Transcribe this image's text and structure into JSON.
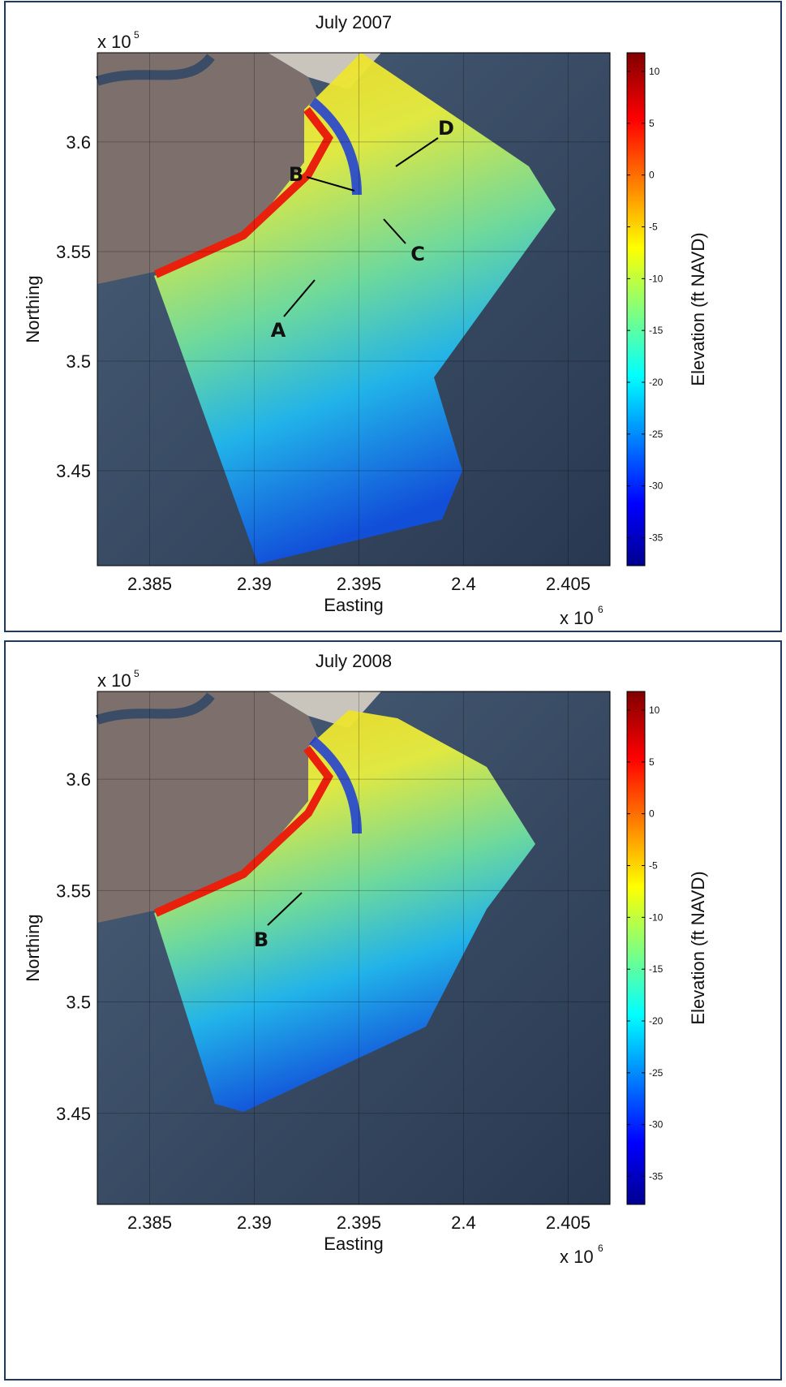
{
  "panels": [
    {
      "title": "July 2007",
      "y_exponent": {
        "base": "x 10",
        "power": "5"
      },
      "x_exponent": {
        "base": "x 10",
        "power": "6"
      },
      "xlabel": "Easting",
      "ylabel": "Northing",
      "xlim": [
        2.3825,
        2.407
      ],
      "ylim": [
        3.4067,
        3.6407
      ],
      "xticks": [
        2.385,
        2.39,
        2.395,
        2.4,
        2.405
      ],
      "yticks": [
        3.45,
        3.5,
        3.55,
        3.6
      ],
      "grid": true,
      "colorbar": {
        "label": "Elevation (ft NAVD)",
        "lim": [
          -37.7,
          11.8
        ],
        "ticks": [
          10,
          5,
          0,
          -5,
          -10,
          -15,
          -20,
          -25,
          -30,
          -35
        ]
      },
      "annotations": [
        "A",
        "B",
        "C",
        "D"
      ]
    },
    {
      "title": "July 2008",
      "y_exponent": {
        "base": "x 10",
        "power": "5"
      },
      "x_exponent": {
        "base": "x 10",
        "power": "6"
      },
      "xlabel": "Easting",
      "ylabel": "Northing",
      "xlim": [
        2.3825,
        2.407
      ],
      "ylim": [
        3.4091,
        3.6394
      ],
      "xticks": [
        2.385,
        2.39,
        2.395,
        2.4,
        2.405
      ],
      "yticks": [
        3.45,
        3.5,
        3.55,
        3.6
      ],
      "grid": true,
      "colorbar": {
        "label": "Elevation (ft NAVD)",
        "lim": [
          -37.7,
          11.8
        ],
        "ticks": [
          10,
          5,
          0,
          -5,
          -10,
          -15,
          -20,
          -25,
          -30,
          -35
        ]
      },
      "annotations": [
        "B"
      ]
    }
  ]
}
